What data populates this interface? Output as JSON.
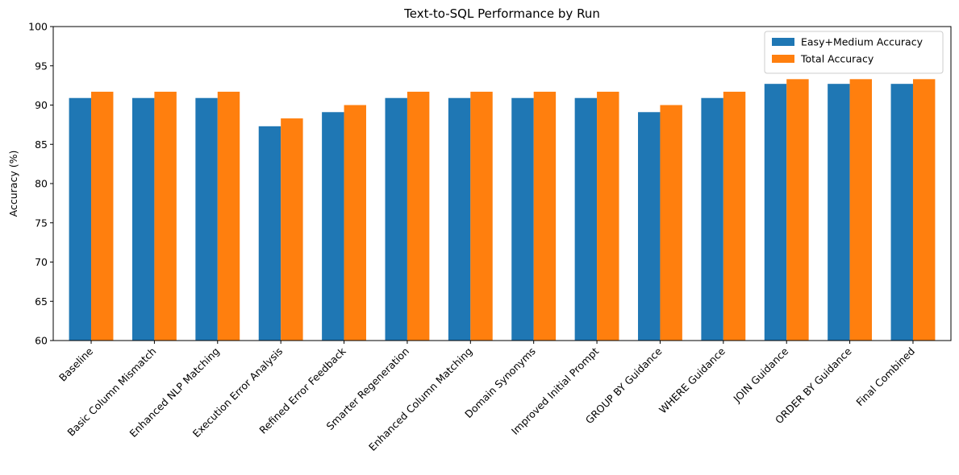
{
  "chart_data": {
    "type": "bar",
    "title": "Text-to-SQL Performance by Run",
    "xlabel": "",
    "ylabel": "Accuracy (%)",
    "ylim": [
      60,
      100
    ],
    "yticks": [
      60,
      65,
      70,
      75,
      80,
      85,
      90,
      95,
      100
    ],
    "grid": false,
    "legend_position": "top-right",
    "categories": [
      "Baseline",
      "Basic Column Mismatch",
      "Enhanced NLP Matching",
      "Execution Error Analysis",
      "Refined Error Feedback",
      "Smarter Regeneration",
      "Enhanced Column Matching",
      "Domain Synonyms",
      "Improved Initial Prompt",
      "GROUP BY Guidance",
      "WHERE Guidance",
      "JOIN Guidance",
      "ORDER BY Guidance",
      "Final Combined"
    ],
    "series": [
      {
        "name": "Easy+Medium Accuracy",
        "color": "#1f77b4",
        "values": [
          90.9,
          90.9,
          90.9,
          87.3,
          89.1,
          90.9,
          90.9,
          90.9,
          90.9,
          89.1,
          90.9,
          92.7,
          92.7,
          92.7
        ]
      },
      {
        "name": "Total Accuracy",
        "color": "#ff7f0e",
        "values": [
          91.7,
          91.7,
          91.7,
          88.3,
          90.0,
          91.7,
          91.7,
          91.7,
          91.7,
          90.0,
          91.7,
          93.3,
          93.3,
          93.3
        ]
      }
    ]
  }
}
